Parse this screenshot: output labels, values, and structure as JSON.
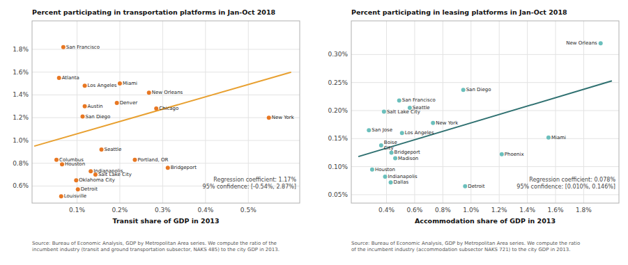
{
  "chart_data": [
    {
      "type": "scatter",
      "title": "Percent participating in transportation platforms in Jan-Oct 2018",
      "x_label": "Transit share of GDP in 2013",
      "annotations": [
        "Regression coefficient: 1.17%\n95% confidence: [-0.54%, 2.87%]"
      ],
      "source": "Source: Bureau of Economic Analysis, GDP by Metropolitan Area series. We compute the ratio of the\nincumbent industry (transit and ground transportation subsector, NAKS 485) to the city GDP in 2013.",
      "grid": true,
      "xlim": [
        -5e-05,
        0.0062
      ],
      "ylim": [
        0.0045,
        0.0205
      ],
      "xticks": [
        {
          "value": 0.001,
          "label": "0.1%"
        },
        {
          "value": 0.002,
          "label": "0.2%"
        },
        {
          "value": 0.003,
          "label": "0.3%"
        },
        {
          "value": 0.004,
          "label": "0.4%"
        },
        {
          "value": 0.005,
          "label": "0.5%"
        }
      ],
      "yticks": [
        {
          "value": 0.006,
          "label": "0.6%"
        },
        {
          "value": 0.008,
          "label": "0.8%"
        },
        {
          "value": 0.01,
          "label": "1.0%"
        },
        {
          "value": 0.012,
          "label": "1.2%"
        },
        {
          "value": 0.014,
          "label": "1.4%"
        },
        {
          "value": 0.016,
          "label": "1.6%"
        },
        {
          "value": 0.018,
          "label": "1.8%"
        }
      ],
      "series": [
        {
          "type": "scatter",
          "color": "#E87722",
          "x": [
            0.00068,
            0.00058,
            0.00118,
            0.002,
            0.00268,
            0.00118,
            0.00193,
            0.00113,
            0.00285,
            0.00548,
            0.00157,
            0.00052,
            0.00065,
            0.00235,
            0.00132,
            0.00143,
            0.00312,
            0.00098,
            0.00102,
            0.00063
          ],
          "values": [
            0.0182,
            0.0155,
            0.0148,
            0.015,
            0.0142,
            0.013,
            0.0133,
            0.0121,
            0.0128,
            0.012,
            0.0092,
            0.0083,
            0.0079,
            0.0083,
            0.0073,
            0.007,
            0.0076,
            0.0065,
            0.0057,
            0.0051
          ],
          "labels": [
            "San Francisco",
            "Atlanta",
            "Los Angeles",
            "Miami",
            "New Orleans",
            "Austin",
            "Denver",
            "San Diego",
            "Chicago",
            "New York",
            "Seattle",
            "Columbus",
            "Houston",
            "Portland, OR",
            "Indianapolis",
            "Salt Lake City",
            "Bridgeport",
            "Oklahoma City",
            "Detroit",
            "Louisville"
          ]
        },
        {
          "type": "line",
          "color": "#E8A030",
          "x": [
            0.0,
            0.006
          ],
          "values": [
            0.0095,
            0.016
          ]
        }
      ]
    },
    {
      "type": "scatter",
      "title": "Percent participating in leasing platforms in Jan-Oct 2018",
      "x_label": "Accommodation share of GDP in 2013",
      "annotations": [
        "Regression coefficient: 0.078%\n95% confidence: [0.010%, 0.146%]"
      ],
      "source": "Source: Bureau of Economic Analysis, GDP by Metropolitan Area series. We compute the ratio\nof the incumbent industry (accommodation subsector NAKS 721) to the city GDP in 2013.",
      "grid": true,
      "xlim": [
        0.0015,
        0.0205
      ],
      "ylim": [
        0.00035,
        0.0036
      ],
      "xticks": [
        {
          "value": 0.004,
          "label": "0.4%"
        },
        {
          "value": 0.006,
          "label": "0.6%"
        },
        {
          "value": 0.008,
          "label": "0.8%"
        },
        {
          "value": 0.01,
          "label": "1.0%"
        },
        {
          "value": 0.012,
          "label": "1.2%"
        },
        {
          "value": 0.014,
          "label": "1.4%"
        },
        {
          "value": 0.016,
          "label": "1.6%"
        },
        {
          "value": 0.018,
          "label": "1.8%"
        }
      ],
      "yticks": [
        {
          "value": 0.0005,
          "label": "0.05%"
        },
        {
          "value": 0.001,
          "label": "0.10%"
        },
        {
          "value": 0.0015,
          "label": "0.15%"
        },
        {
          "value": 0.002,
          "label": "0.20%"
        },
        {
          "value": 0.0025,
          "label": "0.25%"
        },
        {
          "value": 0.003,
          "label": "0.30%"
        }
      ],
      "series": [
        {
          "type": "scatter",
          "color": "#6BBFBC",
          "x": [
            0.0192,
            0.00945,
            0.0049,
            0.00565,
            0.00382,
            0.0073,
            0.00275,
            0.0051,
            0.0155,
            0.00362,
            0.00435,
            0.00462,
            0.01218,
            0.00298,
            0.0039,
            0.0043,
            0.00958
          ],
          "values": [
            0.0032,
            0.00237,
            0.00218,
            0.00205,
            0.00198,
            0.00178,
            0.00165,
            0.0016,
            0.00152,
            0.00138,
            0.00125,
            0.00115,
            0.00122,
            0.00095,
            0.00082,
            0.00072,
            0.00065
          ],
          "labels": [
            "New Orleans",
            "San Diego",
            "San Francisco",
            "Seattle",
            "Salt Lake City",
            "New York",
            "San Jose",
            "Los Angeles",
            "Miami",
            "Boise\nCity",
            "Bridgeport",
            "Madison",
            "Phoenix",
            "Houston",
            "Indianapolis",
            "Dallas",
            "Detroit"
          ]
        },
        {
          "type": "line",
          "color": "#2E7070",
          "x": [
            0.002,
            0.02
          ],
          "values": [
            0.00118,
            0.00253
          ]
        }
      ]
    }
  ]
}
